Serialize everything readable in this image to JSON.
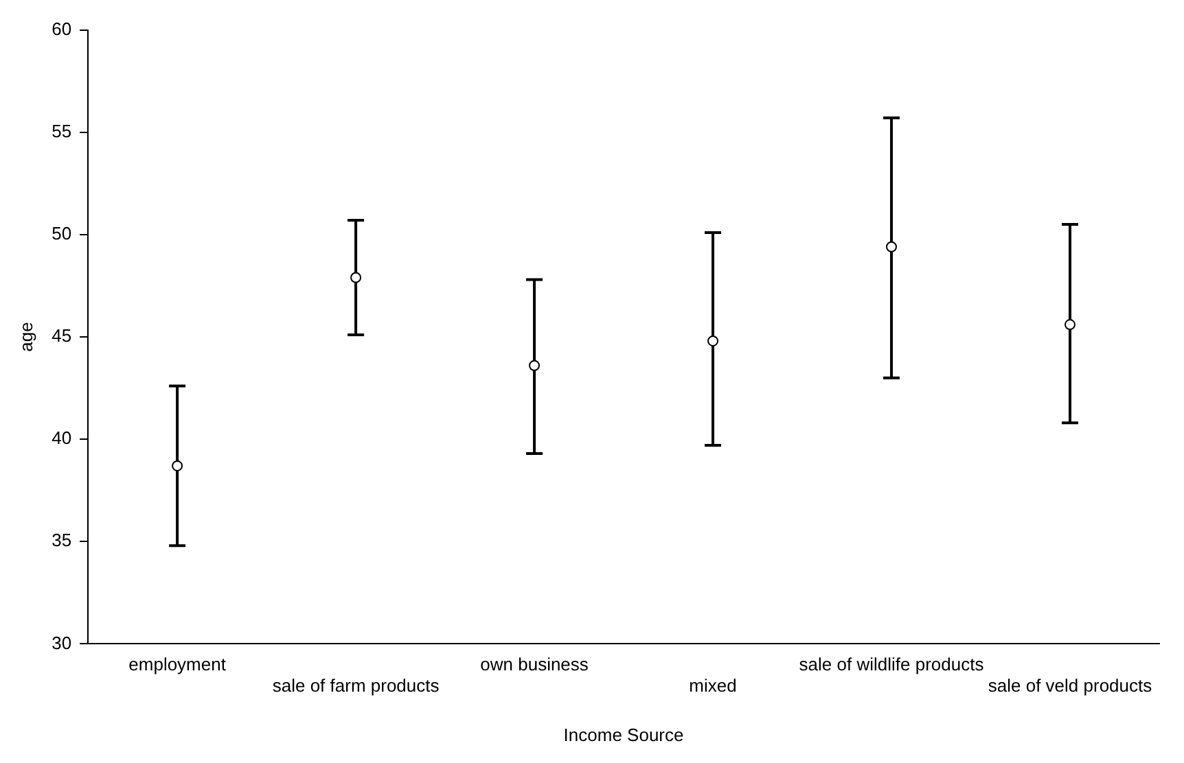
{
  "chart_data": {
    "type": "scatter",
    "xlabel": "Income Source",
    "ylabel": "age",
    "categories": [
      "employment",
      "sale of farm products",
      "own business",
      "mixed",
      "sale of wildlife products",
      "sale of veld products"
    ],
    "values": [
      38.7,
      47.9,
      43.6,
      44.8,
      49.4,
      45.6
    ],
    "errors": [
      [
        34.8,
        42.6
      ],
      [
        45.1,
        50.7
      ],
      [
        39.3,
        47.8
      ],
      [
        39.7,
        50.1
      ],
      [
        43.0,
        55.7
      ],
      [
        40.8,
        50.5
      ]
    ],
    "color": "#000000",
    "marker": "circle",
    "ylim": [
      30,
      60
    ],
    "yticks": [
      30,
      35,
      40,
      45,
      50,
      55,
      60
    ],
    "grid": false,
    "legend": false
  }
}
